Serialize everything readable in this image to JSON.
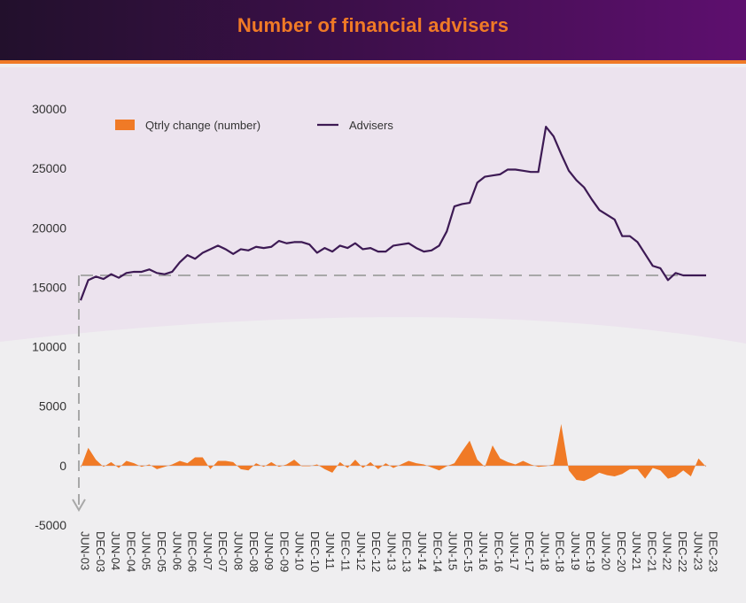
{
  "header": {
    "title": "Number of financial advisers"
  },
  "colors": {
    "header_start": "#22102c",
    "header_end": "#5e0f6f",
    "accent": "#f07a26",
    "line": "#3d1a54",
    "top_band": "#ece3ee",
    "bottom_band": "#efeef0",
    "reference_line": "#a8a8a8"
  },
  "chart_data": {
    "type": "line",
    "title": "Number of financial advisers",
    "xlabel": "",
    "ylabel": "",
    "ylim": [
      -5000,
      30000
    ],
    "yticks": [
      30000,
      25000,
      20000,
      15000,
      10000,
      5000,
      0,
      -5000
    ],
    "xticks": [
      "JUN-03",
      "DEC-03",
      "JUN-04",
      "DEC-04",
      "JUN-05",
      "DEC-05",
      "JUN-06",
      "DEC-06",
      "JUN-07",
      "DEC-07",
      "JUN-08",
      "DEC-08",
      "JUN-09",
      "DEC-09",
      "JUN-10",
      "DEC-10",
      "JUN-11",
      "DEC-11",
      "JUN-12",
      "DEC-12",
      "JUN-13",
      "DEC-13",
      "JUN-14",
      "DEC-14",
      "JUN-15",
      "DEC-15",
      "JUN-16",
      "DEC-16",
      "JUN-17",
      "DEC-17",
      "JUN-18",
      "DEC-18",
      "JUN-19",
      "DEC-19",
      "JUN-20",
      "DEC-20",
      "JUN-21",
      "DEC-21",
      "JUN-22",
      "DEC-22",
      "JUN-23",
      "DEC-23"
    ],
    "legend_position": "top-left",
    "grid": false,
    "reference_line": {
      "value": 16000,
      "style": "dashed"
    },
    "series": [
      {
        "name": "Qtrly change (number)",
        "kind": "area",
        "color": "#f07a26",
        "x": [
          0,
          1,
          2,
          3,
          4,
          5,
          6,
          7,
          8,
          9,
          10,
          11,
          12,
          13,
          14,
          15,
          16,
          17,
          18,
          19,
          20,
          21,
          22,
          23,
          24,
          25,
          26,
          27,
          28,
          29,
          30,
          31,
          32,
          33,
          34,
          35,
          36,
          37,
          38,
          39,
          40,
          41,
          42,
          43,
          44,
          45,
          46,
          47,
          48,
          49,
          50,
          51,
          52,
          53,
          54,
          55,
          56,
          57,
          58,
          59,
          60,
          61,
          62,
          63,
          64,
          65,
          66,
          67,
          68,
          69,
          70,
          71,
          72,
          73,
          74,
          75,
          76,
          77,
          78,
          79,
          80,
          81,
          82
        ],
        "values": [
          -200,
          1500,
          500,
          -100,
          300,
          -200,
          400,
          200,
          -100,
          100,
          -300,
          -100,
          100,
          400,
          200,
          700,
          700,
          -300,
          400,
          400,
          300,
          -300,
          -400,
          200,
          -100,
          300,
          -100,
          100,
          500,
          -50,
          -50,
          100,
          -300,
          -600,
          300,
          -200,
          500,
          -200,
          300,
          -300,
          200,
          -200,
          100,
          400,
          200,
          100,
          -150,
          -400,
          -50,
          200,
          1200,
          2100,
          500,
          -100,
          1700,
          600,
          300,
          100,
          400,
          100,
          -100,
          -50,
          100,
          3500,
          -400,
          -1200,
          -1300,
          -1000,
          -600,
          -800,
          -900,
          -700,
          -300,
          -300,
          -1100,
          -200,
          -400,
          -1100,
          -900,
          -400,
          -900,
          600,
          -100
        ]
      },
      {
        "name": "Advisers",
        "kind": "line",
        "color": "#3d1a54",
        "x": [
          0,
          1,
          2,
          3,
          4,
          5,
          6,
          7,
          8,
          9,
          10,
          11,
          12,
          13,
          14,
          15,
          16,
          17,
          18,
          19,
          20,
          21,
          22,
          23,
          24,
          25,
          26,
          27,
          28,
          29,
          30,
          31,
          32,
          33,
          34,
          35,
          36,
          37,
          38,
          39,
          40,
          41,
          42,
          43,
          44,
          45,
          46,
          47,
          48,
          49,
          50,
          51,
          52,
          53,
          54,
          55,
          56,
          57,
          58,
          59,
          60,
          61,
          62,
          63,
          64,
          65,
          66,
          67,
          68,
          69,
          70,
          71,
          72,
          73,
          74,
          75,
          76,
          77,
          78,
          79,
          80,
          81,
          82
        ],
        "values": [
          13900,
          15600,
          15900,
          15700,
          16100,
          15800,
          16200,
          16300,
          16300,
          16500,
          16200,
          16100,
          16300,
          17100,
          17700,
          17400,
          17900,
          18200,
          18500,
          18200,
          17800,
          18200,
          18100,
          18400,
          18300,
          18400,
          18900,
          18700,
          18800,
          18800,
          18600,
          17900,
          18300,
          18000,
          18500,
          18300,
          18700,
          18200,
          18300,
          18000,
          18000,
          18500,
          18600,
          18700,
          18300,
          18000,
          18100,
          18500,
          19700,
          21800,
          22000,
          22100,
          23800,
          24300,
          24400,
          24500,
          24900,
          24900,
          24800,
          24700,
          24700,
          28500,
          27700,
          26200,
          24800,
          24000,
          23400,
          22400,
          21500,
          21100,
          20700,
          19300,
          19300,
          18800,
          17800,
          16800,
          16600,
          15600,
          16200,
          16000,
          16000,
          16000,
          16000
        ]
      }
    ]
  }
}
